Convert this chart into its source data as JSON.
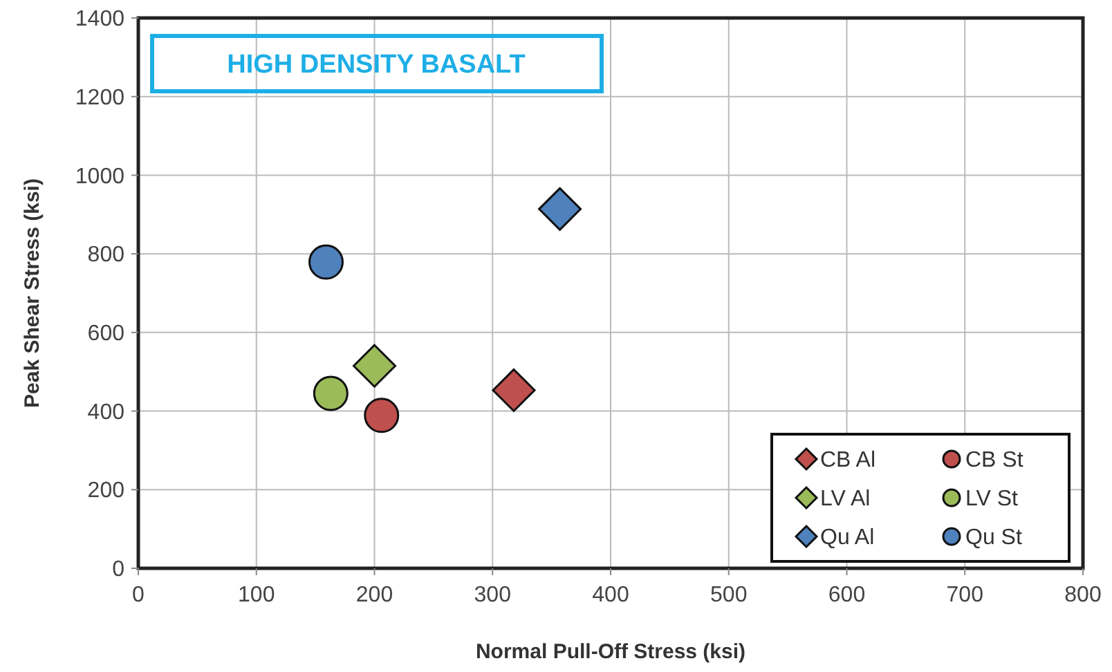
{
  "chart_data": {
    "type": "scatter",
    "title": "HIGH DENSITY BASALT",
    "xlabel": "Normal Pull-Off Stress (ksi)",
    "ylabel": "Peak Shear Stress (ksi)",
    "xlim": [
      0,
      800
    ],
    "xticks": [
      0,
      100,
      200,
      300,
      400,
      500,
      600,
      700,
      800
    ],
    "ylim": [
      0,
      1400
    ],
    "yticks": [
      0,
      200,
      400,
      600,
      800,
      1000,
      1200,
      1400
    ],
    "grid": true,
    "legend": "bottom right",
    "series": [
      {
        "name": "CB Al",
        "color": "#c0504d",
        "marker": "diamond",
        "x": [
          318
        ],
        "values": [
          453
        ]
      },
      {
        "name": "CB St",
        "color": "#c0504d",
        "marker": "circle",
        "x": [
          206
        ],
        "values": [
          389
        ]
      },
      {
        "name": "LV Al",
        "color": "#9bbb59",
        "marker": "diamond",
        "x": [
          200
        ],
        "values": [
          515
        ]
      },
      {
        "name": "LV St",
        "color": "#9bbb59",
        "marker": "circle",
        "x": [
          163
        ],
        "values": [
          445
        ]
      },
      {
        "name": "Qu Al",
        "color": "#4f81bd",
        "marker": "diamond",
        "x": [
          357
        ],
        "values": [
          914
        ]
      },
      {
        "name": "Qu St",
        "color": "#4f81bd",
        "marker": "circle",
        "x": [
          159
        ],
        "values": [
          779
        ]
      }
    ]
  }
}
